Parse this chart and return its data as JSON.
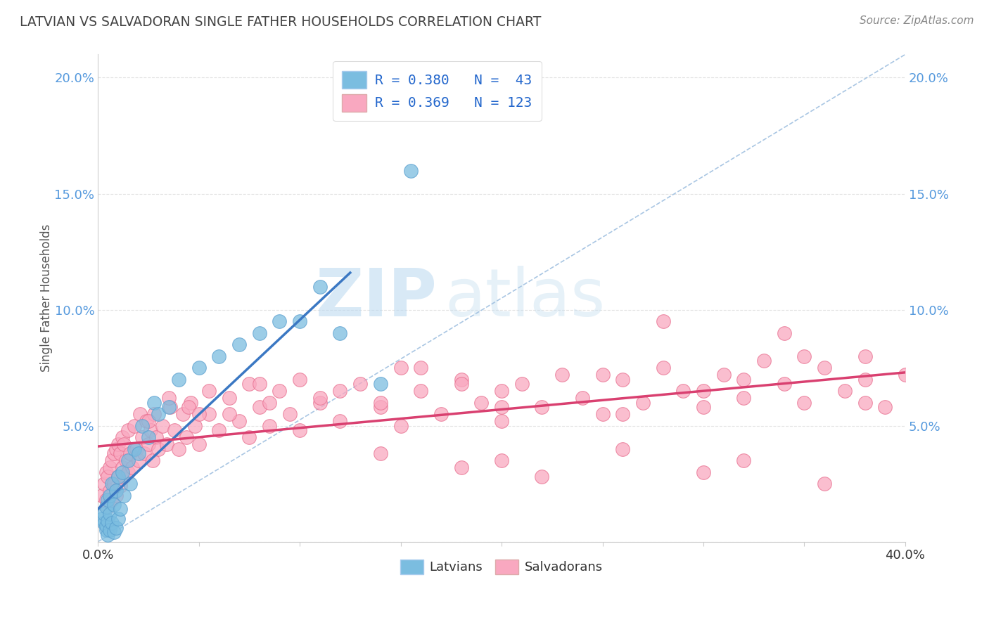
{
  "title": "LATVIAN VS SALVADORAN SINGLE FATHER HOUSEHOLDS CORRELATION CHART",
  "source": "Source: ZipAtlas.com",
  "ylabel": "Single Father Households",
  "x_min": 0.0,
  "x_max": 0.4,
  "y_min": 0.0,
  "y_max": 0.21,
  "latvian_color": "#7bbde0",
  "latvian_edge_color": "#5a9fcf",
  "salvadoran_color": "#f9a8c0",
  "salvadoran_edge_color": "#e87090",
  "latvian_line_color": "#3b78c3",
  "salvadoran_line_color": "#d94070",
  "dashed_line_color": "#a0c0e0",
  "background_color": "#ffffff",
  "grid_color": "#dddddd",
  "watermark_color": "#cce4f5",
  "title_color": "#444444",
  "tick_color": "#5599dd",
  "source_color": "#888888",
  "latvian_x": [
    0.002,
    0.003,
    0.003,
    0.004,
    0.004,
    0.004,
    0.005,
    0.005,
    0.005,
    0.006,
    0.006,
    0.006,
    0.007,
    0.007,
    0.008,
    0.008,
    0.009,
    0.009,
    0.01,
    0.01,
    0.011,
    0.012,
    0.013,
    0.015,
    0.016,
    0.018,
    0.02,
    0.022,
    0.025,
    0.028,
    0.03,
    0.035,
    0.04,
    0.05,
    0.06,
    0.07,
    0.08,
    0.09,
    0.1,
    0.11,
    0.12,
    0.14,
    0.155
  ],
  "latvian_y": [
    0.01,
    0.008,
    0.012,
    0.005,
    0.007,
    0.015,
    0.003,
    0.009,
    0.018,
    0.005,
    0.012,
    0.02,
    0.008,
    0.025,
    0.004,
    0.016,
    0.006,
    0.022,
    0.01,
    0.028,
    0.014,
    0.03,
    0.02,
    0.035,
    0.025,
    0.04,
    0.038,
    0.05,
    0.045,
    0.06,
    0.055,
    0.058,
    0.07,
    0.075,
    0.08,
    0.085,
    0.09,
    0.095,
    0.095,
    0.11,
    0.09,
    0.068,
    0.16
  ],
  "salvadoran_x": [
    0.002,
    0.003,
    0.004,
    0.004,
    0.005,
    0.005,
    0.006,
    0.006,
    0.007,
    0.007,
    0.008,
    0.008,
    0.009,
    0.009,
    0.01,
    0.01,
    0.011,
    0.011,
    0.012,
    0.012,
    0.013,
    0.013,
    0.014,
    0.015,
    0.015,
    0.016,
    0.017,
    0.018,
    0.019,
    0.02,
    0.021,
    0.022,
    0.023,
    0.024,
    0.025,
    0.026,
    0.027,
    0.028,
    0.029,
    0.03,
    0.032,
    0.034,
    0.036,
    0.038,
    0.04,
    0.042,
    0.044,
    0.046,
    0.048,
    0.05,
    0.055,
    0.06,
    0.065,
    0.07,
    0.075,
    0.08,
    0.085,
    0.09,
    0.095,
    0.1,
    0.11,
    0.12,
    0.13,
    0.14,
    0.15,
    0.16,
    0.17,
    0.18,
    0.19,
    0.2,
    0.21,
    0.22,
    0.23,
    0.24,
    0.25,
    0.26,
    0.27,
    0.28,
    0.29,
    0.3,
    0.31,
    0.32,
    0.33,
    0.34,
    0.35,
    0.36,
    0.37,
    0.38,
    0.39,
    0.4,
    0.025,
    0.035,
    0.045,
    0.055,
    0.065,
    0.075,
    0.085,
    0.1,
    0.12,
    0.14,
    0.16,
    0.18,
    0.2,
    0.25,
    0.3,
    0.35,
    0.38,
    0.05,
    0.08,
    0.11,
    0.15,
    0.2,
    0.26,
    0.32,
    0.38,
    0.28,
    0.34,
    0.2,
    0.14,
    0.3,
    0.36,
    0.18,
    0.22,
    0.26,
    0.32
  ],
  "salvadoran_y": [
    0.02,
    0.025,
    0.018,
    0.03,
    0.015,
    0.028,
    0.022,
    0.032,
    0.018,
    0.035,
    0.025,
    0.038,
    0.02,
    0.04,
    0.028,
    0.042,
    0.024,
    0.038,
    0.032,
    0.045,
    0.028,
    0.042,
    0.035,
    0.03,
    0.048,
    0.038,
    0.032,
    0.05,
    0.04,
    0.035,
    0.055,
    0.045,
    0.038,
    0.052,
    0.042,
    0.048,
    0.035,
    0.055,
    0.045,
    0.04,
    0.05,
    0.042,
    0.058,
    0.048,
    0.04,
    0.055,
    0.045,
    0.06,
    0.05,
    0.042,
    0.055,
    0.048,
    0.062,
    0.052,
    0.045,
    0.058,
    0.05,
    0.065,
    0.055,
    0.048,
    0.06,
    0.052,
    0.068,
    0.058,
    0.05,
    0.065,
    0.055,
    0.07,
    0.06,
    0.052,
    0.068,
    0.058,
    0.072,
    0.062,
    0.055,
    0.07,
    0.06,
    0.075,
    0.065,
    0.058,
    0.072,
    0.062,
    0.078,
    0.068,
    0.06,
    0.075,
    0.065,
    0.08,
    0.058,
    0.072,
    0.052,
    0.062,
    0.058,
    0.065,
    0.055,
    0.068,
    0.06,
    0.07,
    0.065,
    0.06,
    0.075,
    0.068,
    0.058,
    0.072,
    0.065,
    0.08,
    0.07,
    0.055,
    0.068,
    0.062,
    0.075,
    0.065,
    0.055,
    0.07,
    0.06,
    0.095,
    0.09,
    0.035,
    0.038,
    0.03,
    0.025,
    0.032,
    0.028,
    0.04,
    0.035
  ]
}
